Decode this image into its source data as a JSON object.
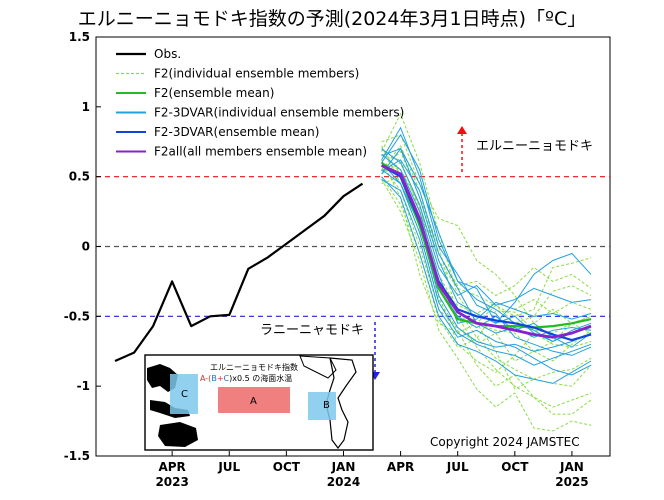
{
  "chart_data": {
    "type": "line",
    "title": "エルニーニョモドキ指数の予測(2024年3月1日時点)「ºC」",
    "ylim": [
      -1.5,
      1.5
    ],
    "yticks": [
      1.5,
      1,
      0.5,
      0,
      -0.5,
      -1,
      -1.5
    ],
    "x_ticks": [
      {
        "month": 4,
        "label": "APR",
        "year": "2023"
      },
      {
        "month": 7,
        "label": "JUL",
        "year": ""
      },
      {
        "month": 10,
        "label": "OCT",
        "year": ""
      },
      {
        "month": 13,
        "label": "JAN",
        "year": "2024"
      },
      {
        "month": 16,
        "label": "APR",
        "year": ""
      },
      {
        "month": 19,
        "label": "JUL",
        "year": ""
      },
      {
        "month": 22,
        "label": "OCT",
        "year": ""
      },
      {
        "month": 25,
        "label": "JAN",
        "year": "2025"
      }
    ],
    "reference_lines": [
      {
        "y": 0.5,
        "color": "#ee1111",
        "style": "dashed"
      },
      {
        "y": 0,
        "color": "#555555",
        "style": "dashed"
      },
      {
        "y": -0.5,
        "color": "#2222dd",
        "style": "dashed"
      }
    ],
    "annotations": {
      "elnino_modoki": "エルニーニョモドキ",
      "lanina_modoki": "ラニーニャモドキ",
      "copyright": "Copyright 2024 JAMSTEC"
    },
    "legend": [
      {
        "label": "Obs.",
        "color": "#000000",
        "dashed": false
      },
      {
        "label": "F2(individual ensemble members)",
        "color": "#88dd44",
        "dashed": true
      },
      {
        "label": "F2(ensemble mean)",
        "color": "#22bb22",
        "dashed": false
      },
      {
        "label": "F2-3DVAR(individual ensemble members)",
        "color": "#22a0e0",
        "dashed": false
      },
      {
        "label": "F2-3DVAR(ensemble mean)",
        "color": "#1144dd",
        "dashed": false
      },
      {
        "label": "F2all(all members ensemble mean)",
        "color": "#8822cc",
        "dashed": false
      }
    ],
    "series": [
      {
        "name": "Obs.",
        "color": "#000000",
        "width": 2.2,
        "x": [
          1,
          2,
          3,
          4,
          5,
          6,
          7,
          8,
          9,
          10,
          11,
          12,
          13,
          14
        ],
        "y": [
          -0.82,
          -0.76,
          -0.57,
          -0.25,
          -0.57,
          -0.5,
          -0.49,
          -0.16,
          -0.08,
          0.02,
          0.12,
          0.22,
          0.36,
          0.45
        ]
      },
      {
        "name": "F2(ensemble mean)",
        "color": "#22bb22",
        "width": 2.2,
        "x": [
          15,
          16,
          17,
          18,
          19,
          20,
          21,
          22,
          23,
          24,
          25,
          26
        ],
        "y": [
          0.6,
          0.5,
          0.15,
          -0.3,
          -0.52,
          -0.55,
          -0.57,
          -0.57,
          -0.58,
          -0.57,
          -0.55,
          -0.52
        ]
      },
      {
        "name": "F2-3DVAR(ensemble mean)",
        "color": "#1144dd",
        "width": 2.2,
        "x": [
          15,
          16,
          17,
          18,
          19,
          20,
          21,
          22,
          23,
          24,
          25,
          26
        ],
        "y": [
          0.58,
          0.5,
          0.18,
          -0.25,
          -0.45,
          -0.5,
          -0.53,
          -0.55,
          -0.58,
          -0.63,
          -0.67,
          -0.63
        ]
      },
      {
        "name": "F2all(all members ensemble mean)",
        "color": "#8822cc",
        "width": 2.8,
        "x": [
          15,
          16,
          17,
          18,
          19,
          20,
          21,
          22,
          23,
          24,
          25,
          26
        ],
        "y": [
          0.58,
          0.52,
          0.2,
          -0.27,
          -0.47,
          -0.55,
          -0.57,
          -0.6,
          -0.63,
          -0.65,
          -0.62,
          -0.57
        ]
      }
    ],
    "ensemble_F2": {
      "color": "#88dd44",
      "x": [
        15,
        16,
        17,
        18,
        19,
        20,
        21,
        22,
        23,
        24,
        25,
        26
      ],
      "members": [
        [
          0.55,
          0.72,
          0.4,
          -0.1,
          -0.3,
          -0.35,
          -0.42,
          -0.55,
          -0.5,
          -0.32,
          -0.28,
          -0.35
        ],
        [
          0.68,
          0.95,
          0.6,
          0.1,
          -0.35,
          -0.55,
          -0.75,
          -1.02,
          -0.95,
          -0.98,
          -1.0,
          -0.85
        ],
        [
          0.5,
          0.3,
          -0.05,
          -0.52,
          -0.72,
          -0.66,
          -0.46,
          -0.47,
          -0.6,
          -0.62,
          -0.55,
          -0.5
        ],
        [
          0.72,
          0.45,
          0.1,
          -0.38,
          -0.6,
          -0.85,
          -1.0,
          -0.92,
          -1.08,
          -1.2,
          -1.2,
          -1.1
        ],
        [
          0.6,
          0.55,
          0.3,
          -0.25,
          -0.53,
          -0.55,
          -0.42,
          -0.5,
          -0.45,
          -0.15,
          -0.12,
          -0.08
        ],
        [
          0.48,
          0.25,
          -0.1,
          -0.6,
          -0.8,
          -1.02,
          -1.15,
          -1.05,
          -1.3,
          -1.32,
          -1.25,
          -1.28
        ],
        [
          0.75,
          0.8,
          0.45,
          0.2,
          0.15,
          -0.1,
          -0.2,
          -0.35,
          -0.55,
          -0.45,
          -0.55,
          -0.5
        ],
        [
          0.58,
          0.4,
          0.0,
          -0.45,
          -0.58,
          -0.7,
          -0.62,
          -0.82,
          -0.75,
          -0.82,
          -0.7,
          -0.6
        ],
        [
          0.65,
          0.62,
          0.25,
          -0.05,
          -0.28,
          -0.25,
          -0.35,
          -0.28,
          -0.15,
          -0.25,
          -0.2,
          -0.3
        ],
        [
          0.45,
          0.5,
          0.2,
          -0.2,
          -0.45,
          -0.65,
          -0.8,
          -0.88,
          -0.95,
          -0.9,
          -0.88,
          -0.8
        ],
        [
          0.62,
          0.35,
          -0.2,
          -0.55,
          -0.62,
          -0.55,
          -0.6,
          -0.62,
          -0.75,
          -0.68,
          -0.55,
          -0.62
        ],
        [
          0.55,
          0.68,
          0.35,
          0.0,
          -0.5,
          -0.72,
          -0.88,
          -1.0,
          -1.08,
          -1.15,
          -1.1,
          -1.05
        ],
        [
          0.7,
          0.52,
          0.15,
          -0.3,
          -0.42,
          -0.48,
          -0.4,
          -0.45,
          -0.38,
          -0.48,
          -0.4,
          -0.45
        ],
        [
          0.52,
          0.6,
          0.28,
          -0.35,
          -0.7,
          -0.82,
          -0.9,
          -0.78,
          -0.62,
          -0.7,
          -0.72,
          -0.68
        ]
      ]
    },
    "ensemble_3DVAR": {
      "color": "#22a0e0",
      "x": [
        15,
        16,
        17,
        18,
        19,
        20,
        21,
        22,
        23,
        24,
        25,
        26
      ],
      "members": [
        [
          0.6,
          0.8,
          0.55,
          0.05,
          -0.25,
          -0.3,
          -0.55,
          -0.4,
          -0.2,
          -0.1,
          -0.05,
          -0.2
        ],
        [
          0.55,
          0.45,
          0.1,
          -0.4,
          -0.62,
          -0.7,
          -0.75,
          -0.78,
          -0.85,
          -0.8,
          -0.75,
          -0.7
        ],
        [
          0.65,
          0.7,
          0.35,
          -0.1,
          -0.4,
          -0.48,
          -0.55,
          -0.5,
          -0.62,
          -0.68,
          -0.6,
          -0.55
        ],
        [
          0.5,
          0.35,
          -0.05,
          -0.5,
          -0.7,
          -0.75,
          -0.82,
          -0.92,
          -0.95,
          -0.98,
          -0.9,
          -0.82
        ],
        [
          0.7,
          0.6,
          0.3,
          -0.15,
          -0.35,
          -0.28,
          -0.42,
          -0.38,
          -0.3,
          -0.35,
          -0.4,
          -0.38
        ],
        [
          0.58,
          0.52,
          0.2,
          -0.3,
          -0.5,
          -0.58,
          -0.5,
          -0.6,
          -0.55,
          -0.65,
          -0.72,
          -0.62
        ],
        [
          0.62,
          0.85,
          0.5,
          0.0,
          -0.2,
          -0.42,
          -0.48,
          -0.65,
          -0.7,
          -0.75,
          -0.78,
          -0.72
        ],
        [
          0.48,
          0.4,
          0.05,
          -0.45,
          -0.65,
          -0.6,
          -0.68,
          -0.72,
          -0.8,
          -0.88,
          -0.92,
          -0.85
        ],
        [
          0.66,
          0.55,
          0.25,
          -0.2,
          -0.55,
          -0.52,
          -0.4,
          -0.45,
          -0.5,
          -0.48,
          -0.52,
          -0.48
        ],
        [
          0.54,
          0.62,
          0.4,
          -0.05,
          -0.3,
          -0.55,
          -0.62,
          -0.58,
          -0.65,
          -0.6,
          -0.58,
          -0.6
        ],
        [
          0.6,
          0.45,
          0.15,
          -0.35,
          -0.58,
          -0.68,
          -0.72,
          -0.7,
          -0.75,
          -0.72,
          -0.68,
          -0.62
        ],
        [
          0.52,
          0.7,
          0.45,
          0.1,
          -0.25,
          -0.38,
          -0.45,
          -0.55,
          -0.6,
          -0.68,
          -0.62,
          -0.58
        ]
      ]
    }
  },
  "inset": {
    "title": "エルニーニョモドキ指数",
    "formula_prefix": "A-(",
    "formula_b": "B",
    "formula_plus": "+",
    "formula_c": "C",
    "formula_suffix": ")x0.5 の海面水温",
    "box_a_label": "A",
    "box_b_label": "B",
    "box_c_label": "C",
    "box_a_color": "#f08080",
    "box_bc_color": "#7ec8ec"
  }
}
